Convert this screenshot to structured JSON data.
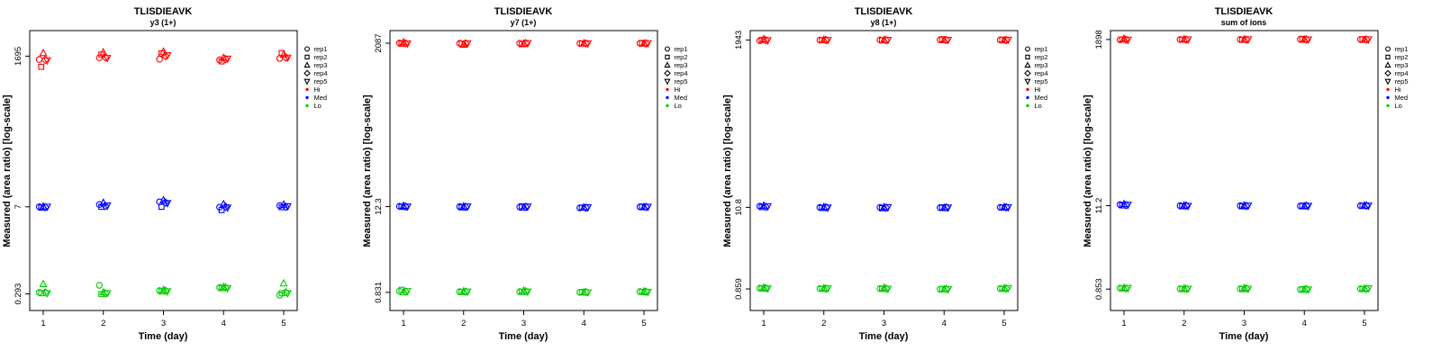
{
  "legend": {
    "reps": [
      {
        "label": "rep1",
        "symbol": "circle"
      },
      {
        "label": "rep2",
        "symbol": "square"
      },
      {
        "label": "rep3",
        "symbol": "triangle-up"
      },
      {
        "label": "rep4",
        "symbol": "diamond"
      },
      {
        "label": "rep5",
        "symbol": "triangle-down"
      }
    ],
    "levels": [
      {
        "label": "Hi",
        "color": "#FF0000"
      },
      {
        "label": "Med",
        "color": "#0000FF"
      },
      {
        "label": "Lo",
        "color": "#00CC00"
      }
    ]
  },
  "chart_data": [
    {
      "type": "scatter",
      "title": "TLISDIEAVK",
      "subtitle": "y3 (1+)",
      "xlabel": "Time (day)",
      "ylabel": "Measured (area ratio) [log-scale]",
      "x_ticks": [
        1,
        2,
        3,
        4,
        5
      ],
      "y_ticks": [
        {
          "value": 1695,
          "label": "1695"
        },
        {
          "value": 7,
          "label": "7"
        },
        {
          "value": 0.293,
          "label": "0.293"
        }
      ],
      "ylim_log": [
        0.16,
        4300
      ],
      "levels": [
        {
          "name": "Hi",
          "color": "#FF0000",
          "days": [
            [
              1500,
              1150,
              1900,
              1480,
              1450
            ],
            [
              1600,
              1800,
              1950,
              1620,
              1580
            ],
            [
              1520,
              1880,
              2000,
              1700,
              1750
            ],
            [
              1480,
              1400,
              1600,
              1520,
              1540
            ],
            [
              1560,
              1900,
              1800,
              1620,
              1600
            ]
          ]
        },
        {
          "name": "Med",
          "color": "#0000FF",
          "days": [
            [
              7.0,
              6.8,
              7.1,
              6.9,
              7.0
            ],
            [
              7.6,
              7.0,
              8.1,
              7.2,
              7.3
            ],
            [
              8.4,
              7.0,
              8.9,
              8.2,
              8.0
            ],
            [
              6.9,
              6.2,
              7.7,
              7.0,
              6.8
            ],
            [
              7.3,
              6.9,
              7.6,
              7.0,
              7.1
            ]
          ]
        },
        {
          "name": "Lo",
          "color": "#00CC00",
          "days": [
            [
              0.31,
              0.3,
              0.42,
              0.31,
              0.3
            ],
            [
              0.4,
              0.29,
              0.31,
              0.3,
              0.3
            ],
            [
              0.33,
              0.32,
              0.34,
              0.33,
              0.32
            ],
            [
              0.37,
              0.36,
              0.38,
              0.37,
              0.36
            ],
            [
              0.28,
              0.3,
              0.43,
              0.31,
              0.3
            ]
          ]
        }
      ]
    },
    {
      "type": "scatter",
      "title": "TLISDIEAVK",
      "subtitle": "y7 (1+)",
      "xlabel": "Time (day)",
      "ylabel": "Measured (area ratio) [log-scale]",
      "x_ticks": [
        1,
        2,
        3,
        4,
        5
      ],
      "y_ticks": [
        {
          "value": 2087,
          "label": "2087"
        },
        {
          "value": 12.3,
          "label": "12.3"
        },
        {
          "value": 0.831,
          "label": "0.831"
        }
      ],
      "ylim_log": [
        0.47,
        3100
      ],
      "levels": [
        {
          "name": "Hi",
          "color": "#FF0000",
          "days": [
            [
              2100,
              2050,
              2150,
              2080,
              2060
            ],
            [
              2080,
              2060,
              1990,
              2070,
              2075
            ],
            [
              2090,
              2020,
              2070,
              2085,
              2080
            ],
            [
              2075,
              2060,
              2080,
              2070,
              2065
            ],
            [
              2080,
              2100,
              2070,
              2075,
              2085
            ]
          ]
        },
        {
          "name": "Med",
          "color": "#0000FF",
          "days": [
            [
              12.4,
              12.2,
              12.6,
              12.3,
              12.3
            ],
            [
              12.3,
              12.0,
              12.4,
              12.2,
              12.3
            ],
            [
              12.1,
              12.4,
              11.9,
              12.2,
              12.3
            ],
            [
              11.8,
              11.9,
              12.0,
              11.9,
              12.0
            ],
            [
              12.2,
              12.3,
              12.1,
              12.2,
              12.2
            ]
          ]
        },
        {
          "name": "Lo",
          "color": "#00CC00",
          "days": [
            [
              0.86,
              0.9,
              0.84,
              0.85,
              0.86
            ],
            [
              0.85,
              0.84,
              0.86,
              0.85,
              0.85
            ],
            [
              0.85,
              0.84,
              0.88,
              0.86,
              0.85
            ],
            [
              0.83,
              0.84,
              0.83,
              0.84,
              0.83
            ],
            [
              0.85,
              0.84,
              0.86,
              0.85,
              0.84
            ]
          ]
        }
      ]
    },
    {
      "type": "scatter",
      "title": "TLISDIEAVK",
      "subtitle": "y8 (1+)",
      "xlabel": "Time (day)",
      "ylabel": "Measured (area ratio) [log-scale]",
      "x_ticks": [
        1,
        2,
        3,
        4,
        5
      ],
      "y_ticks": [
        {
          "value": 1943,
          "label": "1943"
        },
        {
          "value": 10.8,
          "label": "10.8"
        },
        {
          "value": 0.859,
          "label": "0.859"
        }
      ],
      "ylim_log": [
        0.44,
        2600
      ],
      "levels": [
        {
          "name": "Hi",
          "color": "#FF0000",
          "days": [
            [
              1900,
              1950,
              2000,
              1930,
              1920
            ],
            [
              1940,
              1930,
              1960,
              1945,
              1935
            ],
            [
              1945,
              1920,
              1950,
              1940,
              1942
            ],
            [
              1950,
              1990,
              1935,
              1945,
              1940
            ],
            [
              1945,
              1960,
              1930,
              1940,
              1950
            ]
          ]
        },
        {
          "name": "Med",
          "color": "#0000FF",
          "days": [
            [
              11.2,
              10.9,
              11.4,
              11.0,
              11.1
            ],
            [
              10.8,
              10.6,
              10.9,
              10.8,
              10.7
            ],
            [
              10.8,
              10.5,
              10.9,
              10.7,
              10.8
            ],
            [
              10.7,
              10.8,
              10.6,
              10.8,
              10.7
            ],
            [
              10.8,
              10.7,
              10.9,
              10.8,
              10.8
            ]
          ]
        },
        {
          "name": "Lo",
          "color": "#00CC00",
          "days": [
            [
              0.88,
              0.87,
              0.9,
              0.88,
              0.87
            ],
            [
              0.87,
              0.86,
              0.88,
              0.87,
              0.87
            ],
            [
              0.87,
              0.86,
              0.89,
              0.87,
              0.86
            ],
            [
              0.85,
              0.86,
              0.85,
              0.86,
              0.85
            ],
            [
              0.87,
              0.86,
              0.88,
              0.87,
              0.88
            ]
          ]
        }
      ]
    },
    {
      "type": "scatter",
      "title": "TLISDIEAVK",
      "subtitle": "sum of ions",
      "xlabel": "Time (day)",
      "ylabel": "Measured (area ratio) [log-scale]",
      "x_ticks": [
        1,
        2,
        3,
        4,
        5
      ],
      "y_ticks": [
        {
          "value": 1898,
          "label": "1898"
        },
        {
          "value": 11.2,
          "label": "11.2"
        },
        {
          "value": 0.853,
          "label": "0.853"
        }
      ],
      "ylim_log": [
        0.44,
        2500
      ],
      "levels": [
        {
          "name": "Hi",
          "color": "#FF0000",
          "days": [
            [
              1880,
              1900,
              1950,
              1890,
              1885
            ],
            [
              1900,
              1890,
              1910,
              1895,
              1898
            ],
            [
              1898,
              1880,
              1905,
              1895,
              1900
            ],
            [
              1905,
              1940,
              1890,
              1900,
              1895
            ],
            [
              1900,
              1915,
              1885,
              1895,
              1905
            ]
          ]
        },
        {
          "name": "Med",
          "color": "#0000FF",
          "days": [
            [
              11.6,
              11.3,
              11.8,
              11.4,
              11.5
            ],
            [
              11.2,
              11.0,
              11.3,
              11.2,
              11.1
            ],
            [
              11.2,
              11.0,
              11.3,
              11.1,
              11.2
            ],
            [
              11.1,
              11.2,
              11.0,
              11.2,
              11.1
            ],
            [
              11.2,
              11.1,
              11.3,
              11.2,
              11.2
            ]
          ]
        },
        {
          "name": "Lo",
          "color": "#00CC00",
          "days": [
            [
              0.88,
              0.87,
              0.89,
              0.87,
              0.88
            ],
            [
              0.86,
              0.85,
              0.87,
              0.86,
              0.86
            ],
            [
              0.86,
              0.85,
              0.88,
              0.87,
              0.86
            ],
            [
              0.84,
              0.85,
              0.84,
              0.85,
              0.84
            ],
            [
              0.86,
              0.85,
              0.87,
              0.86,
              0.87
            ]
          ]
        }
      ]
    }
  ]
}
